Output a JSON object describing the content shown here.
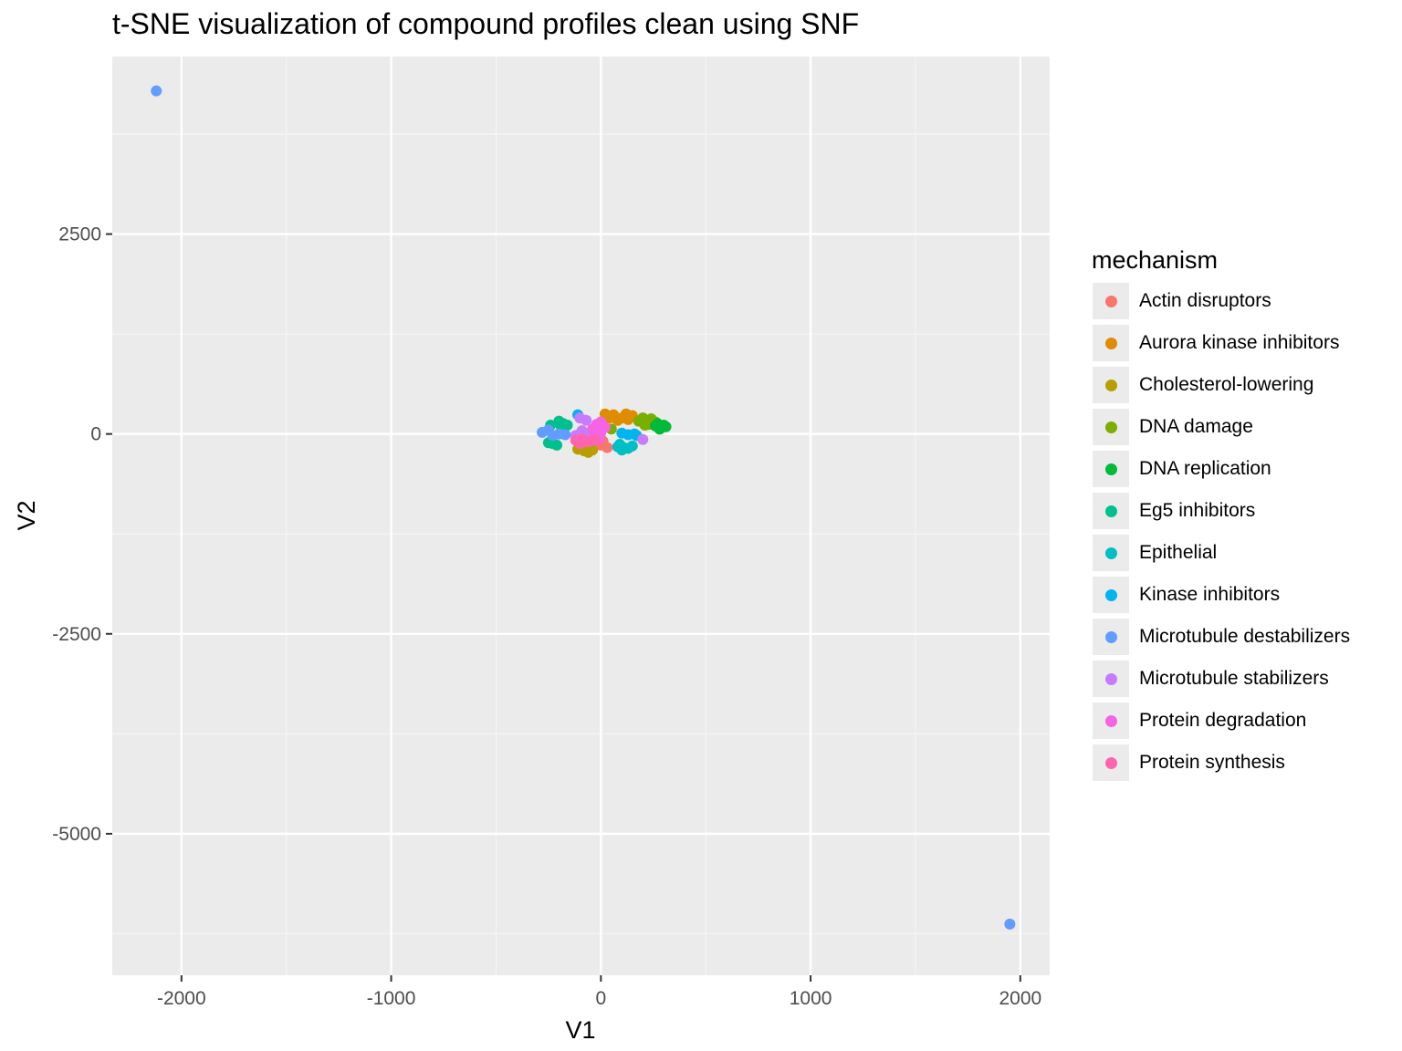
{
  "chart_data": {
    "type": "scatter",
    "title": "t-SNE visualization of compound profiles clean using SNF",
    "xlabel": "V1",
    "ylabel": "V2",
    "xlim": [
      -2330,
      2140
    ],
    "ylim": [
      -6770,
      4720
    ],
    "x_ticks": [
      -2000,
      -1000,
      0,
      1000,
      2000
    ],
    "x_tick_labels": [
      "-2000",
      "-1000",
      "0",
      "1000",
      "2000"
    ],
    "y_ticks": [
      -5000,
      -2500,
      0,
      2500
    ],
    "y_tick_labels": [
      "-5000",
      "-2500",
      "0",
      "2500"
    ],
    "grid": true,
    "legend_position": "right",
    "legend_title": "mechanism",
    "series": [
      {
        "name": "Actin disruptors",
        "color": "#F8766D",
        "points": [
          [
            -20,
            -120
          ],
          [
            0,
            -140
          ],
          [
            30,
            -170
          ],
          [
            -50,
            -100
          ],
          [
            10,
            -90
          ]
        ]
      },
      {
        "name": "Aurora kinase inhibitors",
        "color": "#DE8C00",
        "points": [
          [
            20,
            250
          ],
          [
            60,
            240
          ],
          [
            100,
            200
          ],
          [
            120,
            250
          ],
          [
            150,
            230
          ],
          [
            80,
            170
          ],
          [
            40,
            200
          ],
          [
            130,
            180
          ]
        ]
      },
      {
        "name": "Cholesterol-lowering",
        "color": "#B79F00",
        "points": [
          [
            -110,
            -190
          ],
          [
            -80,
            -210
          ],
          [
            -60,
            -230
          ],
          [
            -40,
            -200
          ],
          [
            -90,
            -150
          ],
          [
            -70,
            -170
          ]
        ]
      },
      {
        "name": "DNA damage",
        "color": "#7CAE00",
        "points": [
          [
            200,
            200
          ],
          [
            240,
            190
          ],
          [
            260,
            150
          ],
          [
            210,
            110
          ],
          [
            180,
            160
          ],
          [
            230,
            120
          ],
          [
            50,
            60
          ]
        ]
      },
      {
        "name": "DNA replication",
        "color": "#00BA38",
        "points": [
          [
            260,
            100
          ],
          [
            290,
            80
          ],
          [
            280,
            60
          ],
          [
            310,
            90
          ],
          [
            300,
            110
          ],
          [
            270,
            130
          ]
        ]
      },
      {
        "name": "Eg5 inhibitors",
        "color": "#00C08B",
        "points": [
          [
            -240,
            110
          ],
          [
            -200,
            160
          ],
          [
            -180,
            130
          ],
          [
            -230,
            -120
          ],
          [
            -250,
            -110
          ],
          [
            -210,
            -140
          ],
          [
            -190,
            100
          ],
          [
            -160,
            110
          ]
        ]
      },
      {
        "name": "Epithelial",
        "color": "#00BFC4",
        "points": [
          [
            80,
            -160
          ],
          [
            100,
            -200
          ],
          [
            130,
            -180
          ],
          [
            150,
            -150
          ],
          [
            90,
            -130
          ],
          [
            110,
            -170
          ]
        ]
      },
      {
        "name": "Kinase inhibitors",
        "color": "#00B4F0",
        "points": [
          [
            100,
            10
          ],
          [
            130,
            -10
          ],
          [
            160,
            0
          ],
          [
            170,
            -20
          ],
          [
            -110,
            240
          ]
        ]
      },
      {
        "name": "Microtubule destabilizers",
        "color": "#619CFF",
        "points": [
          [
            -2120,
            4290
          ],
          [
            1950,
            -6130
          ],
          [
            -280,
            20
          ],
          [
            -250,
            50
          ],
          [
            -230,
            -20
          ],
          [
            -200,
            0
          ],
          [
            -170,
            -10
          ]
        ]
      },
      {
        "name": "Microtubule stabilizers",
        "color": "#C77CFF",
        "points": [
          [
            -100,
            200
          ],
          [
            -70,
            170
          ],
          [
            -90,
            40
          ],
          [
            -60,
            0
          ],
          [
            200,
            -70
          ],
          [
            -120,
            -20
          ]
        ]
      },
      {
        "name": "Protein degradation",
        "color": "#F564E3",
        "points": [
          [
            -20,
            120
          ],
          [
            0,
            150
          ],
          [
            20,
            80
          ],
          [
            -40,
            60
          ],
          [
            0,
            20
          ],
          [
            -30,
            -30
          ],
          [
            -10,
            -60
          ]
        ]
      },
      {
        "name": "Protein synthesis",
        "color": "#FF64B0",
        "points": [
          [
            -120,
            -80
          ],
          [
            -90,
            -60
          ],
          [
            -60,
            -100
          ],
          [
            -30,
            -80
          ],
          [
            -100,
            -120
          ]
        ]
      }
    ]
  }
}
